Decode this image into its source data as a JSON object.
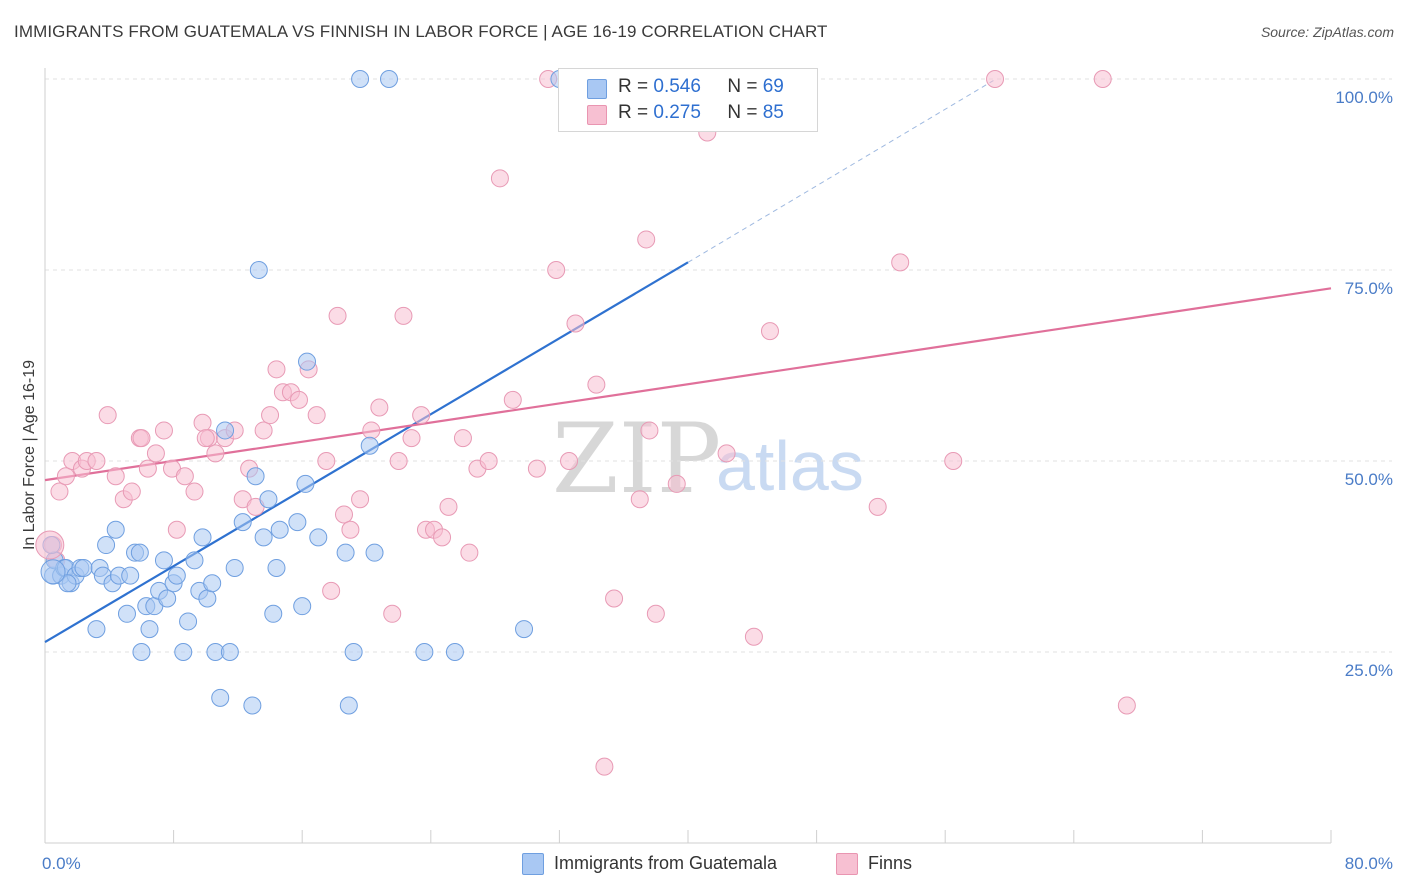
{
  "title": "IMMIGRANTS FROM GUATEMALA VS FINNISH IN LABOR FORCE | AGE 16-19 CORRELATION CHART",
  "source": "Source: ZipAtlas.com",
  "watermark": {
    "zip": "ZIP",
    "atlas": "atlas"
  },
  "legend_top": [
    {
      "r_label": "R =",
      "r_value": "0.546",
      "n_label": "N =",
      "n_value": "69",
      "color": "#a9c8f3",
      "border": "#6f9fe0"
    },
    {
      "r_label": "R =",
      "r_value": "0.275",
      "n_label": "N =",
      "n_value": "85",
      "color": "#f7c0d2",
      "border": "#e995b1"
    }
  ],
  "legend_bottom": [
    {
      "label": "Immigrants from Guatemala",
      "color": "#a9c8f3",
      "border": "#6f9fe0"
    },
    {
      "label": "Finns",
      "color": "#f7c0d2",
      "border": "#e995b1"
    }
  ],
  "colors": {
    "blue_line": "#2f72d0",
    "pink_line": "#e0709a",
    "blue_fill": "#a9c8f3",
    "pink_fill": "#f7c0d2",
    "blue_stroke": "#6f9fe0",
    "pink_stroke": "#e89ab5"
  },
  "chart_data": {
    "type": "scatter",
    "title": "IMMIGRANTS FROM GUATEMALA VS FINNISH IN LABOR FORCE | AGE 16-19 CORRELATION CHART",
    "xlabel": "",
    "ylabel": "In Labor Force | Age 16-19",
    "xlim": [
      0,
      80
    ],
    "ylim": [
      0,
      103
    ],
    "x_tick_labels": [
      "0.0%",
      "80.0%"
    ],
    "y_ticks": [
      25,
      50,
      75,
      100
    ],
    "y_tick_labels": [
      "25.0%",
      "50.0%",
      "75.0%",
      "100.0%"
    ],
    "grid": true,
    "legend_position": "top-center",
    "series": [
      {
        "name": "Immigrants from Guatemala",
        "R": 0.546,
        "N": 69,
        "trend": {
          "x0": 0,
          "y0": 26.3,
          "x1": 40,
          "y1": 76.0,
          "dashed_to_x": 59,
          "dashed_to_y": 99.8
        },
        "points": [
          [
            0.5,
            35
          ],
          [
            0.6,
            37
          ],
          [
            1.0,
            35
          ],
          [
            1.2,
            36
          ],
          [
            1.3,
            36
          ],
          [
            1.6,
            34
          ],
          [
            1.9,
            35
          ],
          [
            2.2,
            36
          ],
          [
            2.4,
            36
          ],
          [
            3.2,
            28
          ],
          [
            3.4,
            36
          ],
          [
            3.6,
            35
          ],
          [
            3.8,
            39
          ],
          [
            4.2,
            34
          ],
          [
            4.4,
            41
          ],
          [
            4.6,
            35
          ],
          [
            5.1,
            30
          ],
          [
            5.3,
            35
          ],
          [
            5.6,
            38
          ],
          [
            5.9,
            38
          ],
          [
            6.3,
            31
          ],
          [
            6.5,
            28
          ],
          [
            6.8,
            31
          ],
          [
            7.1,
            33
          ],
          [
            7.4,
            37
          ],
          [
            7.6,
            32
          ],
          [
            8.0,
            34
          ],
          [
            8.2,
            35
          ],
          [
            8.6,
            25
          ],
          [
            8.9,
            29
          ],
          [
            9.3,
            37
          ],
          [
            9.6,
            33
          ],
          [
            9.8,
            40
          ],
          [
            10.1,
            32
          ],
          [
            10.4,
            34
          ],
          [
            10.6,
            25
          ],
          [
            10.9,
            19
          ],
          [
            11.2,
            54
          ],
          [
            11.5,
            25
          ],
          [
            11.8,
            36
          ],
          [
            12.3,
            42
          ],
          [
            12.9,
            18
          ],
          [
            13.1,
            48
          ],
          [
            13.3,
            75
          ],
          [
            13.6,
            40
          ],
          [
            13.9,
            45
          ],
          [
            14.2,
            30
          ],
          [
            14.4,
            36
          ],
          [
            14.6,
            41
          ],
          [
            15.7,
            42
          ],
          [
            16.0,
            31
          ],
          [
            16.2,
            47
          ],
          [
            16.3,
            63
          ],
          [
            17.0,
            40
          ],
          [
            18.7,
            38
          ],
          [
            18.9,
            18
          ],
          [
            19.2,
            25
          ],
          [
            19.6,
            100
          ],
          [
            20.2,
            52
          ],
          [
            20.5,
            38
          ],
          [
            21.4,
            100
          ],
          [
            23.6,
            25
          ],
          [
            25.5,
            25
          ],
          [
            29.8,
            28
          ],
          [
            32.0,
            100
          ],
          [
            35.5,
            100
          ],
          [
            0.4,
            39
          ],
          [
            1.4,
            34
          ],
          [
            6.0,
            25
          ]
        ]
      },
      {
        "name": "Finns",
        "R": 0.275,
        "N": 85,
        "trend": {
          "x0": 0,
          "y0": 47.5,
          "x1": 80,
          "y1": 72.6
        },
        "points": [
          [
            0.5,
            39
          ],
          [
            0.7,
            37
          ],
          [
            0.9,
            46
          ],
          [
            1.3,
            48
          ],
          [
            1.7,
            50
          ],
          [
            2.3,
            49
          ],
          [
            2.6,
            50
          ],
          [
            3.2,
            50
          ],
          [
            3.9,
            56
          ],
          [
            4.4,
            48
          ],
          [
            4.9,
            45
          ],
          [
            5.4,
            46
          ],
          [
            5.9,
            53
          ],
          [
            6.4,
            49
          ],
          [
            6.9,
            51
          ],
          [
            7.4,
            54
          ],
          [
            7.9,
            49
          ],
          [
            8.2,
            41
          ],
          [
            8.7,
            48
          ],
          [
            9.3,
            46
          ],
          [
            9.8,
            55
          ],
          [
            10.2,
            53
          ],
          [
            10.6,
            51
          ],
          [
            11.2,
            53
          ],
          [
            11.8,
            54
          ],
          [
            12.3,
            45
          ],
          [
            12.7,
            49
          ],
          [
            13.1,
            44
          ],
          [
            13.6,
            54
          ],
          [
            14.0,
            56
          ],
          [
            14.4,
            62
          ],
          [
            14.8,
            59
          ],
          [
            15.3,
            59
          ],
          [
            15.8,
            58
          ],
          [
            16.4,
            62
          ],
          [
            16.9,
            56
          ],
          [
            17.5,
            50
          ],
          [
            17.8,
            33
          ],
          [
            18.2,
            69
          ],
          [
            18.6,
            43
          ],
          [
            19.0,
            41
          ],
          [
            19.6,
            45
          ],
          [
            20.3,
            54
          ],
          [
            20.8,
            57
          ],
          [
            21.6,
            30
          ],
          [
            22.0,
            50
          ],
          [
            22.3,
            69
          ],
          [
            22.8,
            53
          ],
          [
            23.4,
            56
          ],
          [
            23.7,
            41
          ],
          [
            24.2,
            41
          ],
          [
            24.7,
            40
          ],
          [
            25.1,
            44
          ],
          [
            26.0,
            53
          ],
          [
            26.4,
            38
          ],
          [
            26.9,
            49
          ],
          [
            27.6,
            50
          ],
          [
            28.3,
            87
          ],
          [
            29.1,
            58
          ],
          [
            30.6,
            49
          ],
          [
            31.3,
            100
          ],
          [
            31.8,
            75
          ],
          [
            32.6,
            50
          ],
          [
            33.0,
            68
          ],
          [
            34.3,
            60
          ],
          [
            34.8,
            10
          ],
          [
            35.4,
            32
          ],
          [
            37.0,
            45
          ],
          [
            37.4,
            79
          ],
          [
            37.6,
            54
          ],
          [
            38.0,
            30
          ],
          [
            39.3,
            47
          ],
          [
            41.2,
            93
          ],
          [
            42.4,
            51
          ],
          [
            44.1,
            27
          ],
          [
            45.1,
            67
          ],
          [
            51.8,
            44
          ],
          [
            53.2,
            76
          ],
          [
            56.5,
            50
          ],
          [
            59.1,
            100
          ],
          [
            65.8,
            100
          ],
          [
            67.3,
            18
          ],
          [
            34.0,
            100
          ],
          [
            10.0,
            53
          ],
          [
            6.0,
            53
          ]
        ]
      }
    ]
  }
}
